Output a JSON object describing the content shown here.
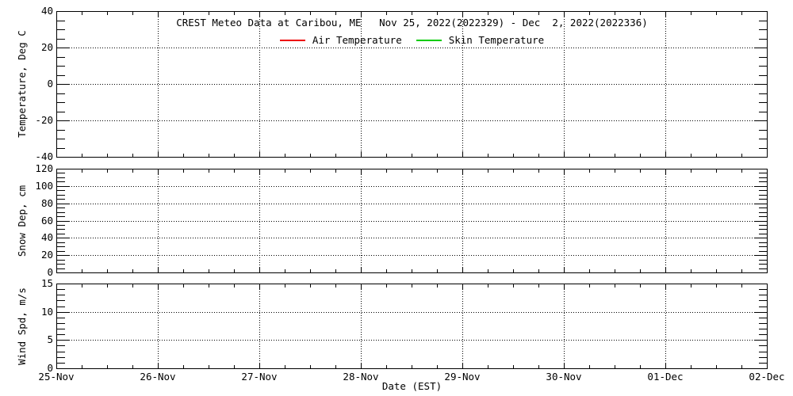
{
  "chart_data": {
    "type": "line",
    "title": "CREST Meteo Data at Caribou, ME   Nov 25, 2022(2022329) - Dec  2, 2022(2022336)",
    "xlabel": "Date (EST)",
    "x_tick_labels": [
      "25-Nov",
      "26-Nov",
      "27-Nov",
      "28-Nov",
      "29-Nov",
      "30-Nov",
      "01-Dec",
      "02-Dec"
    ],
    "x_minor_ticks_per_interval": 3,
    "grid": "dotted, at major ticks",
    "legend_position": "top center, below title",
    "legend": [
      {
        "label": "Air Temperature",
        "color": "#ee0000"
      },
      {
        "label": "Skin Temperature",
        "color": "#00cc00"
      }
    ],
    "panels": [
      {
        "name": "temperature",
        "ylabel": "Temperature, Deg C",
        "ylim": [
          -40,
          40
        ],
        "y_major_ticks": [
          40,
          20,
          0,
          -20,
          -40
        ],
        "y_minor_step": 5,
        "h_gridline_values": [
          20,
          0,
          -20
        ],
        "series": [
          {
            "name": "Air Temperature",
            "color": "#ee0000",
            "values": []
          },
          {
            "name": "Skin Temperature",
            "color": "#00cc00",
            "values": []
          }
        ],
        "has_data": false
      },
      {
        "name": "snow-depth",
        "ylabel": "Snow Dep, cm",
        "ylim": [
          0,
          120
        ],
        "y_major_ticks": [
          120,
          100,
          80,
          60,
          40,
          20,
          0
        ],
        "y_minor_step": 5,
        "h_gridline_values": [
          100,
          80,
          60,
          40,
          20
        ],
        "series": [],
        "has_data": false
      },
      {
        "name": "wind-speed",
        "ylabel": "Wind Spd, m/s",
        "ylim": [
          0,
          15
        ],
        "y_major_ticks": [
          15,
          10,
          5,
          0
        ],
        "y_minor_step": 1,
        "h_gridline_values": [
          10,
          5
        ],
        "series": [],
        "has_data": false
      }
    ]
  }
}
